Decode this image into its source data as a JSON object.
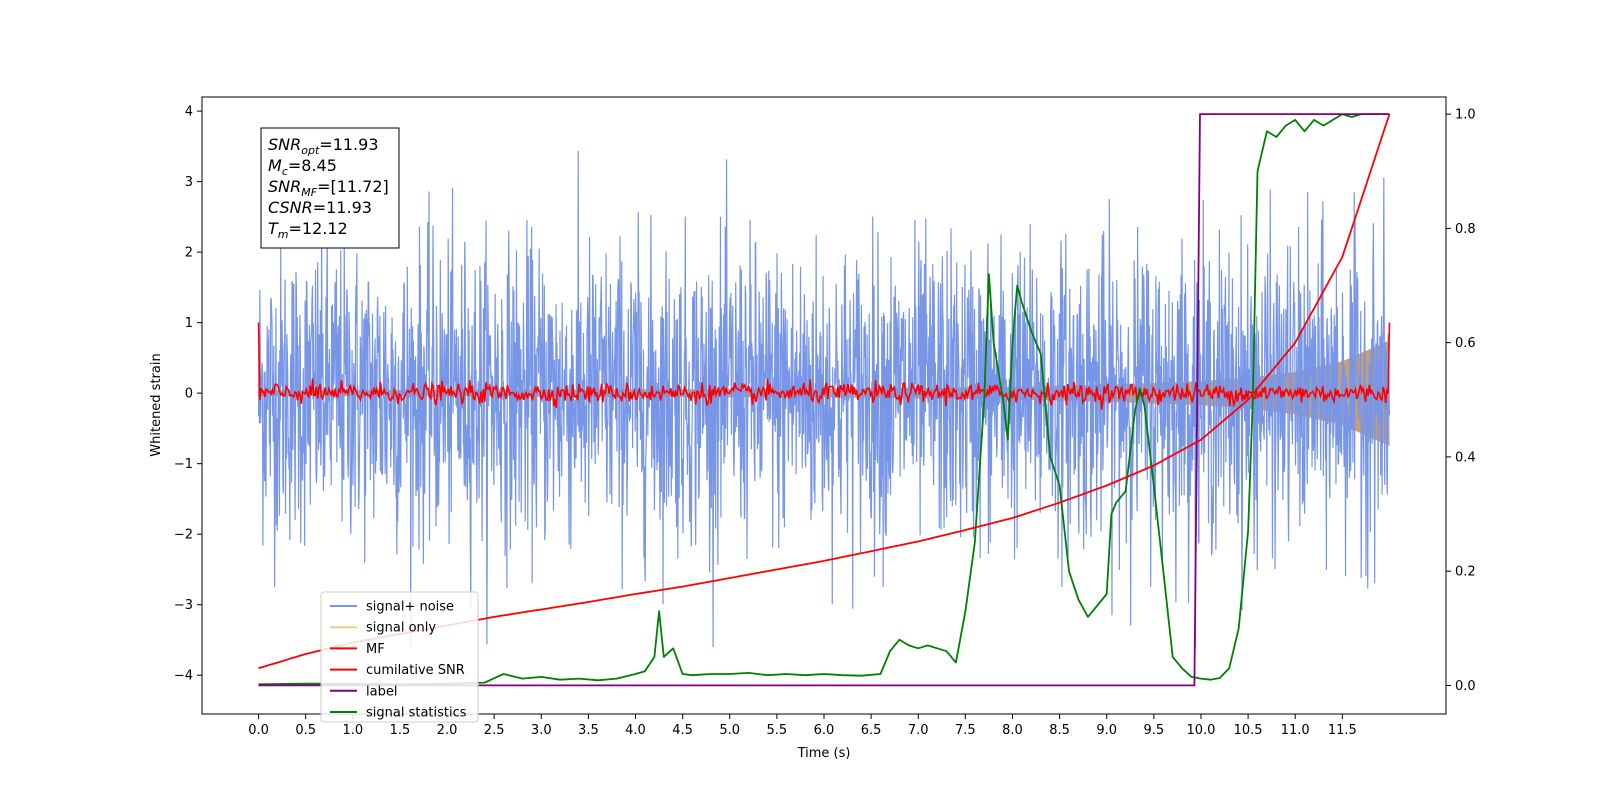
{
  "chart_data": {
    "type": "line",
    "title": "",
    "xlabel": "Time (s)",
    "ylabel": "Whitened strain",
    "xlim": [
      -0.6,
      12.6
    ],
    "ylim_left": [
      -4.55,
      4.2
    ],
    "ylim_right": [
      -0.05,
      1.03
    ],
    "x_ticks": [
      0.0,
      0.5,
      1.0,
      1.5,
      2.0,
      2.5,
      3.0,
      3.5,
      4.0,
      4.5,
      5.0,
      5.5,
      6.0,
      6.5,
      7.0,
      7.5,
      8.0,
      8.5,
      9.0,
      9.5,
      10.0,
      10.5,
      11.0,
      11.5
    ],
    "x_tick_labels": [
      "0.0",
      "0.5",
      "1.0",
      "1.5",
      "2.0",
      "2.5",
      "3.0",
      "3.5",
      "4.0",
      "4.5",
      "5.0",
      "5.5",
      "6.0",
      "6.5",
      "7.0",
      "7.5",
      "8.0",
      "8.5",
      "9.0",
      "9.5",
      "10.0",
      "10.5",
      "11.0",
      "11.5"
    ],
    "y_left_ticks": [
      4,
      3,
      2,
      1,
      0,
      -1,
      -2,
      -3,
      -4
    ],
    "y_left_tick_labels": [
      "4",
      "3",
      "2",
      "1",
      "0",
      "−1",
      "−2",
      "−3",
      "−4"
    ],
    "y_right_ticks": [
      1.0,
      0.8,
      0.6,
      0.4,
      0.2,
      0.0
    ],
    "y_right_tick_labels": [
      "1.0",
      "0.8",
      "0.6",
      "0.4",
      "0.2",
      "0.0"
    ],
    "grid": false,
    "legend_position": "lower-left",
    "annotation": [
      {
        "base": "SNR",
        "sub": "opt",
        "value": "=11.93"
      },
      {
        "base": "M",
        "sub": "c",
        "value": "=8.45"
      },
      {
        "base": "SNR",
        "sub": "MF",
        "value": "=[11.72]"
      },
      {
        "base": "CSNR",
        "sub": "",
        "value": "=11.93"
      },
      {
        "base": "T",
        "sub": "m",
        "value": "=12.12"
      }
    ],
    "series": [
      {
        "name": "signal+ noise",
        "axis": "left",
        "color": "#7896e8",
        "kind": "noise",
        "note": "dense noisy trace, roughly within [-3.6, 3.8]"
      },
      {
        "name": "signal only",
        "axis": "left",
        "color": "#f5c887",
        "kind": "chirp",
        "amplitude_envelope": {
          "x": [
            0,
            6,
            8,
            9,
            10,
            10.5,
            11,
            11.5,
            12.0
          ],
          "y": [
            0.04,
            0.06,
            0.09,
            0.12,
            0.17,
            0.22,
            0.3,
            0.45,
            0.75
          ]
        }
      },
      {
        "name": "MF",
        "axis": "left",
        "color": "#ff0000",
        "kind": "noise-small",
        "note": "fluctuates around 0, amplitude about 0.2; spikes to about 1.0 at both ends"
      },
      {
        "name": "cumilative SNR",
        "axis": "right",
        "color": "#ff0000",
        "x": [
          0.0,
          0.5,
          1,
          1.5,
          2,
          2.5,
          3,
          3.5,
          4,
          4.5,
          5,
          5.5,
          6,
          6.5,
          7,
          7.5,
          8,
          8.5,
          9,
          9.5,
          10,
          10.5,
          11,
          11.5,
          12.0
        ],
        "y": [
          0.03,
          0.055,
          0.075,
          0.09,
          0.105,
          0.12,
          0.133,
          0.146,
          0.16,
          0.173,
          0.188,
          0.203,
          0.218,
          0.235,
          0.252,
          0.272,
          0.293,
          0.32,
          0.35,
          0.385,
          0.43,
          0.5,
          0.6,
          0.75,
          1.0
        ]
      },
      {
        "name": "label",
        "axis": "right",
        "color": "#800080",
        "x": [
          0.0,
          9.93,
          9.99,
          12.0
        ],
        "y": [
          0.0,
          0.0,
          1.0,
          1.0
        ]
      },
      {
        "name": "signal statistics",
        "axis": "right",
        "color": "#008000",
        "x": [
          0.0,
          0.5,
          1.0,
          1.5,
          2.0,
          2.2,
          2.4,
          2.6,
          2.8,
          3.0,
          3.2,
          3.4,
          3.6,
          3.8,
          4.0,
          4.1,
          4.2,
          4.25,
          4.3,
          4.4,
          4.5,
          4.6,
          4.8,
          5.0,
          5.2,
          5.4,
          5.6,
          5.8,
          6.0,
          6.2,
          6.4,
          6.6,
          6.7,
          6.8,
          6.9,
          7.0,
          7.1,
          7.3,
          7.4,
          7.5,
          7.6,
          7.7,
          7.75,
          7.8,
          7.9,
          7.95,
          8.0,
          8.05,
          8.1,
          8.2,
          8.3,
          8.4,
          8.5,
          8.6,
          8.7,
          8.8,
          8.9,
          9.0,
          9.05,
          9.1,
          9.2,
          9.3,
          9.35,
          9.4,
          9.5,
          9.6,
          9.7,
          9.8,
          9.9,
          10.0,
          10.1,
          10.2,
          10.3,
          10.4,
          10.5,
          10.55,
          10.6,
          10.7,
          10.8,
          10.9,
          11.0,
          11.1,
          11.2,
          11.3,
          11.4,
          11.5,
          11.6,
          11.7,
          11.8,
          12.0
        ],
        "y": [
          0.002,
          0.003,
          0.003,
          0.002,
          0.003,
          0.004,
          0.005,
          0.02,
          0.012,
          0.015,
          0.01,
          0.012,
          0.009,
          0.012,
          0.02,
          0.025,
          0.05,
          0.13,
          0.05,
          0.065,
          0.02,
          0.018,
          0.02,
          0.02,
          0.022,
          0.018,
          0.02,
          0.018,
          0.02,
          0.018,
          0.017,
          0.02,
          0.06,
          0.08,
          0.07,
          0.065,
          0.07,
          0.06,
          0.04,
          0.13,
          0.25,
          0.5,
          0.72,
          0.6,
          0.5,
          0.43,
          0.6,
          0.7,
          0.67,
          0.62,
          0.58,
          0.4,
          0.35,
          0.2,
          0.15,
          0.12,
          0.14,
          0.16,
          0.3,
          0.32,
          0.34,
          0.48,
          0.52,
          0.49,
          0.35,
          0.2,
          0.05,
          0.03,
          0.015,
          0.012,
          0.01,
          0.013,
          0.03,
          0.1,
          0.27,
          0.5,
          0.9,
          0.97,
          0.96,
          0.98,
          0.99,
          0.97,
          0.99,
          0.98,
          0.99,
          1.0,
          0.995,
          1.0,
          1.0,
          1.0
        ]
      }
    ]
  }
}
